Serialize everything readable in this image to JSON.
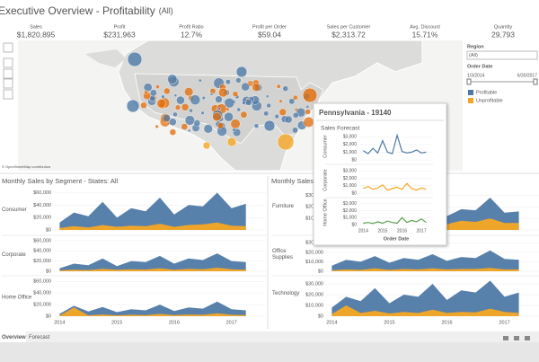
{
  "title": "Executive Overview - Profitability",
  "title_filter": "(All)",
  "kpis": [
    {
      "label": "Sales",
      "value": "$1,820,895"
    },
    {
      "label": "Profit",
      "value": "$231,963"
    },
    {
      "label": "Profit Ratio",
      "value": "12.7%"
    },
    {
      "label": "Profit per Order",
      "value": "$59.04"
    },
    {
      "label": "Sales per Customer",
      "value": "$2,313.72"
    },
    {
      "label": "Avg. Discount",
      "value": "15.71%"
    },
    {
      "label": "Quantity",
      "value": "29,793"
    }
  ],
  "map": {
    "credit": "© OpenStreetMap contributors"
  },
  "filters": {
    "region": {
      "label": "Region",
      "value": "(All)"
    },
    "order_date": {
      "label": "Order Date",
      "start": "1/3/2014",
      "end": "6/30/2017"
    }
  },
  "legend": [
    {
      "name": "Profitable",
      "color": "#4e79a7"
    },
    {
      "name": "Unprofitable",
      "color": "#f5a623"
    }
  ],
  "charts": [
    {
      "type": "area",
      "title": "Monthly Sales by Segment - States: All",
      "x": [
        2014,
        2014.25,
        2014.5,
        2014.75,
        2015,
        2015.25,
        2015.5,
        2015.75,
        2016,
        2016.25,
        2016.5,
        2016.75,
        2017,
        2017.25
      ],
      "xlim": [
        2013.9,
        2017.6
      ],
      "xticks": [
        2014,
        2015,
        2016,
        2017
      ],
      "ylim": [
        0,
        65000
      ],
      "yticks": [
        {
          "value": 0,
          "label": "$0"
        },
        {
          "value": 20000,
          "label": "$20,000"
        },
        {
          "value": 40000,
          "label": "$40,000"
        },
        {
          "value": 60000,
          "label": "$60,000"
        }
      ],
      "panels": [
        {
          "name": "Consumer",
          "series": [
            {
              "color": "#4e79a7",
              "values": [
                12000,
                28000,
                22000,
                45000,
                20000,
                35000,
                30000,
                52000,
                25000,
                40000,
                38000,
                60000,
                35000,
                42000
              ]
            },
            {
              "color": "#f5a623",
              "values": [
                3000,
                6000,
                4000,
                8000,
                5000,
                7000,
                6000,
                10000,
                5000,
                8000,
                9000,
                12000,
                7000,
                6000
              ]
            }
          ]
        },
        {
          "name": "Corporate",
          "series": [
            {
              "color": "#4e79a7",
              "values": [
                6000,
                15000,
                12000,
                25000,
                10000,
                20000,
                18000,
                30000,
                15000,
                25000,
                22000,
                35000,
                20000,
                18000
              ]
            },
            {
              "color": "#f5a623",
              "values": [
                2000,
                3000,
                2500,
                5000,
                3000,
                4000,
                3500,
                6000,
                3000,
                5000,
                4000,
                7000,
                4000,
                3000
              ]
            }
          ]
        },
        {
          "name": "Home Office",
          "series": [
            {
              "color": "#4e79a7",
              "values": [
                4000,
                18000,
                8000,
                16000,
                7000,
                12000,
                10000,
                20000,
                9000,
                15000,
                13000,
                25000,
                12000,
                10000
              ]
            },
            {
              "color": "#f5a623",
              "values": [
                1000,
                15000,
                1500,
                3000,
                1500,
                2500,
                2000,
                4000,
                2000,
                3000,
                2500,
                5000,
                2500,
                2000
              ]
            }
          ]
        }
      ]
    },
    {
      "type": "area",
      "title": "Monthly Sales by Product Category - States: All",
      "x": [
        2014,
        2014.25,
        2014.5,
        2014.75,
        2015,
        2015.25,
        2015.5,
        2015.75,
        2016,
        2016.25,
        2016.5,
        2016.75,
        2017,
        2017.25
      ],
      "xlim": [
        2013.9,
        2017.6
      ],
      "xticks": [
        2014,
        2015,
        2016,
        2017
      ],
      "ylim": [
        0,
        35000
      ],
      "yticks": [
        {
          "value": 0,
          "label": "$0"
        },
        {
          "value": 10000,
          "label": "$10,000"
        },
        {
          "value": 20000,
          "label": "$20,000"
        },
        {
          "value": 30000,
          "label": "$30,000"
        }
      ],
      "panels": [
        {
          "name": "Furniture",
          "series": [
            {
              "color": "#4e79a7",
              "values": [
                8000,
                14000,
                12000,
                20000,
                10000,
                16000,
                14000,
                24000,
                12000,
                18000,
                17000,
                28000,
                15000,
                16000
              ]
            },
            {
              "color": "#f5a623",
              "values": [
                3000,
                6000,
                5000,
                8000,
                4000,
                7000,
                6000,
                9000,
                5000,
                8000,
                7000,
                10000,
                6000,
                6000
              ]
            }
          ]
        },
        {
          "name": "Office Supplies",
          "series": [
            {
              "color": "#4e79a7",
              "values": [
                6000,
                12000,
                10000,
                16000,
                9000,
                14000,
                12000,
                18000,
                11000,
                15000,
                14000,
                22000,
                13000,
                12000
              ]
            },
            {
              "color": "#f5a623",
              "values": [
                1000,
                2000,
                1500,
                3000,
                1500,
                2500,
                2000,
                3000,
                2000,
                2500,
                2500,
                3500,
                2000,
                2000
              ]
            }
          ]
        },
        {
          "name": "Technology",
          "series": [
            {
              "color": "#4e79a7",
              "values": [
                8000,
                18000,
                14000,
                26000,
                12000,
                20000,
                18000,
                30000,
                15000,
                24000,
                22000,
                33000,
                18000,
                22000
              ]
            },
            {
              "color": "#f5a623",
              "values": [
                2000,
                10000,
                3000,
                5000,
                2500,
                4000,
                3000,
                6000,
                3000,
                4000,
                3500,
                7000,
                4000,
                3000
              ]
            }
          ]
        }
      ]
    },
    {
      "type": "line",
      "title": "Sales Forecast",
      "x_label": "Order Date",
      "x": [
        2014,
        2014.25,
        2014.5,
        2014.75,
        2015,
        2015.25,
        2015.5,
        2015.75,
        2016,
        2016.25,
        2016.5,
        2016.75,
        2017,
        2017.25
      ],
      "xlim": [
        2013.8,
        2017.6
      ],
      "xticks": [
        2014,
        2015,
        2016,
        2017
      ],
      "ylim": [
        0,
        3500
      ],
      "yticks": [
        {
          "value": 0,
          "label": "$0"
        },
        {
          "value": 1000,
          "label": "$1,000"
        },
        {
          "value": 2000,
          "label": "$2,000"
        },
        {
          "value": 3000,
          "label": "$3,000"
        }
      ],
      "panels": [
        {
          "name": "Consumer",
          "series": [
            {
              "color": "#4e79a7",
              "values": [
                1200,
                800,
                1500,
                900,
                2500,
                1000,
                800,
                3200,
                1100,
                900,
                1000,
                1300,
                900,
                1000
              ]
            }
          ]
        },
        {
          "name": "Corporate",
          "series": [
            {
              "color": "#f5a623",
              "values": [
                600,
                900,
                500,
                700,
                1100,
                400,
                600,
                800,
                500,
                1300,
                600,
                400,
                700,
                500
              ]
            }
          ]
        },
        {
          "name": "Home Office",
          "series": [
            {
              "color": "#59a14f",
              "values": [
                200,
                300,
                150,
                400,
                200,
                500,
                300,
                200,
                1000,
                300,
                600,
                400,
                800,
                300
              ]
            }
          ]
        }
      ]
    }
  ],
  "tooltip": {
    "title": "Pennsylvania - 19140"
  },
  "tabs": [
    "Overview",
    "Forecast"
  ]
}
